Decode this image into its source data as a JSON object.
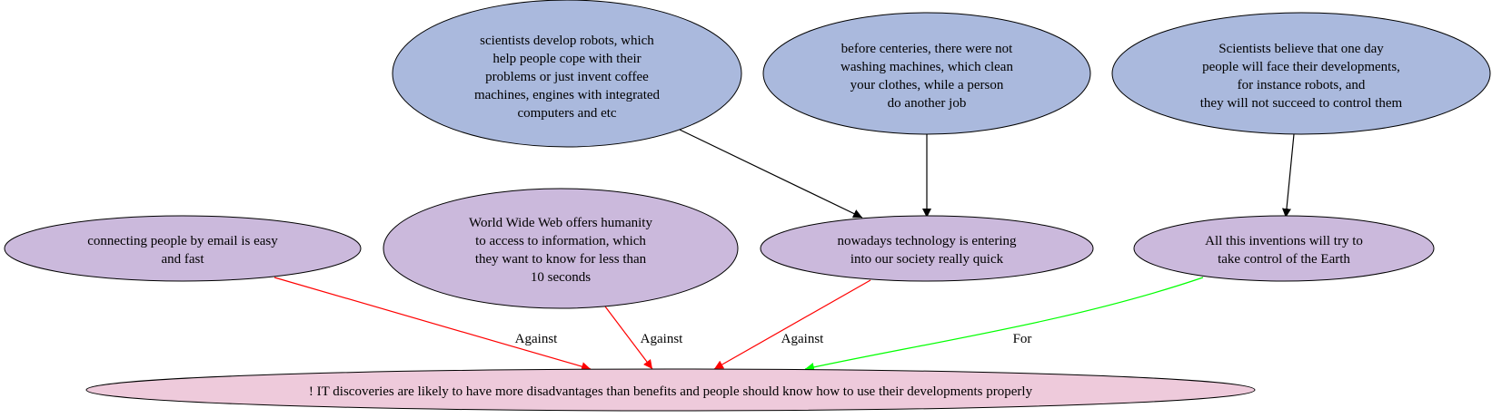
{
  "colors": {
    "premise_fill": "#aab9dd",
    "subclaim_fill": "#cbb9dc",
    "conclusion_fill": "#eecadb",
    "support_edge": "#000000",
    "against_edge": "#ff0000",
    "for_edge": "#00ff00"
  },
  "nodes": {
    "premise_robots": {
      "lines": [
        "scientists develop robots, which",
        "help people cope with their",
        "problems or just invent coffee",
        "machines, engines with integrated",
        "computers and etc"
      ]
    },
    "premise_washing": {
      "lines": [
        "before centeries, there were not",
        "washing machines, which clean",
        "your clothes, while a person",
        "do another job"
      ]
    },
    "premise_scientists": {
      "lines": [
        "Scientists believe that one day",
        "people will face their developments,",
        "for instance robots, and",
        "they will not succeed to control them"
      ]
    },
    "claim_email": {
      "lines": [
        "connecting people by email is easy",
        "and fast"
      ]
    },
    "claim_www": {
      "lines": [
        "World Wide Web offers humanity",
        "to access to information, which",
        "they want to know for less than",
        "10 seconds"
      ]
    },
    "claim_technology": {
      "lines": [
        "nowadays technology is entering",
        "into our society really quick"
      ]
    },
    "claim_inventions": {
      "lines": [
        "All this inventions will try to",
        "take control of the Earth"
      ]
    },
    "conclusion": {
      "lines": [
        "! IT discoveries are likely to have more disadvantages than benefits and people should know how to use their developments properly"
      ]
    }
  },
  "edges": [
    {
      "from": "premise_robots",
      "to": "claim_technology",
      "label": "",
      "kind": "support"
    },
    {
      "from": "premise_washing",
      "to": "claim_technology",
      "label": "",
      "kind": "support"
    },
    {
      "from": "premise_scientists",
      "to": "claim_inventions",
      "label": "",
      "kind": "support"
    },
    {
      "from": "claim_email",
      "to": "conclusion",
      "label": "Against",
      "kind": "against"
    },
    {
      "from": "claim_www",
      "to": "conclusion",
      "label": "Against",
      "kind": "against"
    },
    {
      "from": "claim_technology",
      "to": "conclusion",
      "label": "Against",
      "kind": "against"
    },
    {
      "from": "claim_inventions",
      "to": "conclusion",
      "label": "For",
      "kind": "for"
    }
  ]
}
